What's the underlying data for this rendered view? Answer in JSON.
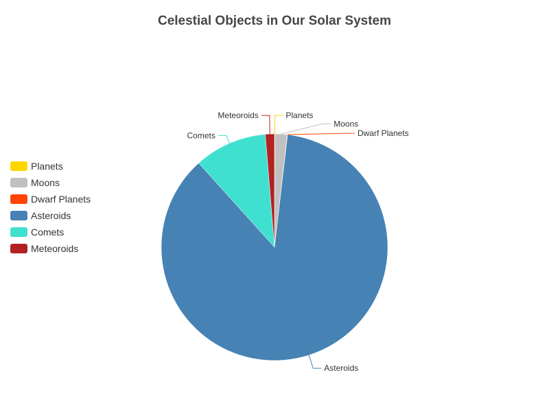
{
  "chart_data": {
    "type": "pie",
    "title": "Celestial Objects in Our Solar System",
    "legend_position": "left",
    "slices": [
      {
        "name": "Planets",
        "value": 8,
        "color": "#ffd700"
      },
      {
        "name": "Moons",
        "value": 200,
        "color": "#c0c0c0"
      },
      {
        "name": "Dwarf Planets",
        "value": 5,
        "color": "#ff4500"
      },
      {
        "name": "Asteroids",
        "value": 10000,
        "color": "#4682b4"
      },
      {
        "name": "Comets",
        "value": 1200,
        "color": "#40e0d0"
      },
      {
        "name": "Meteoroids",
        "value": 150,
        "color": "#b22222"
      }
    ]
  }
}
